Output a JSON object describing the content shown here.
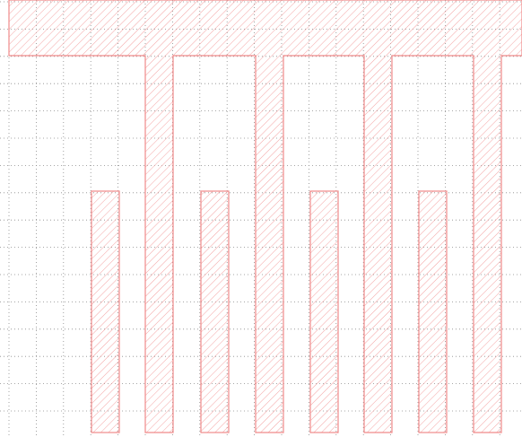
{
  "colors": {
    "background": "#ffffff",
    "grid": "#8a8a8a",
    "shape_stroke": "#f08a8a",
    "shape_hatch": "#f4a3a3"
  },
  "diagram": {
    "grid": "dotted",
    "fill_pattern": "diagonal-hatch",
    "top_bar_count": 1,
    "long_finger_count": 4,
    "short_finger_count": 4
  }
}
